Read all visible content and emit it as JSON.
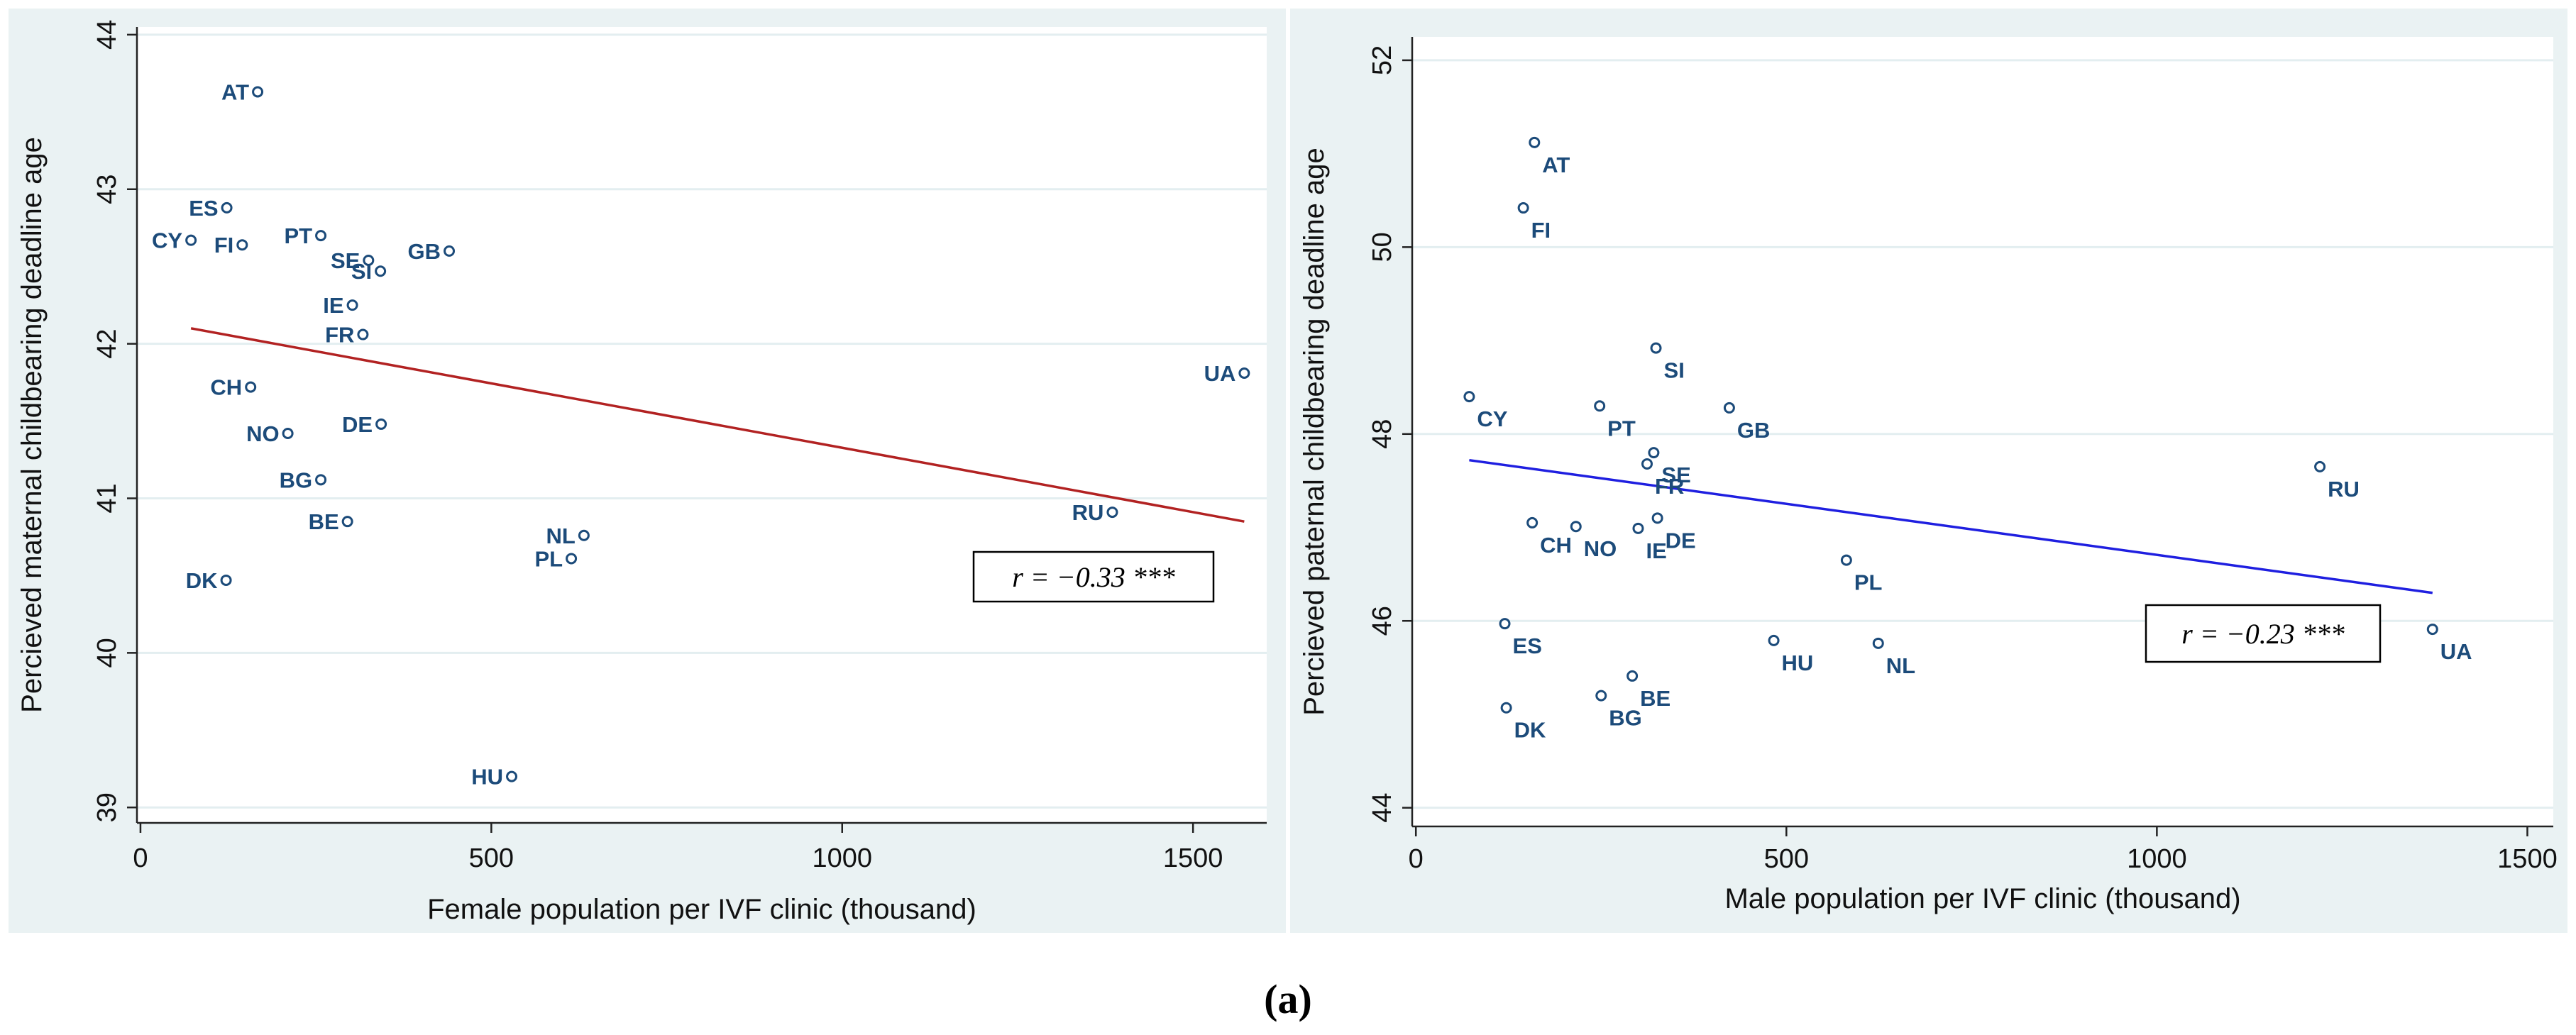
{
  "caption": "(a)",
  "chart_data": [
    {
      "type": "scatter",
      "title": "",
      "xlabel": "Female population per IVF clinic (thousand)",
      "ylabel": "Percieved maternal childbearing deadline age",
      "xlim": [
        -5,
        1605
      ],
      "ylim": [
        38.9,
        44.05
      ],
      "xticks": [
        0,
        500,
        1000,
        1500
      ],
      "xtick_labels": [
        "0",
        "500",
        "1000",
        "1500"
      ],
      "yticks": [
        39,
        40,
        41,
        42,
        43,
        44
      ],
      "ytick_labels": [
        "39",
        "40",
        "41",
        "42",
        "43",
        "44"
      ],
      "grid": true,
      "points": [
        {
          "label": "AT",
          "x": 167,
          "y": 43.63,
          "pos": "left"
        },
        {
          "label": "ES",
          "x": 123,
          "y": 42.88,
          "pos": "left"
        },
        {
          "label": "CY",
          "x": 72,
          "y": 42.67,
          "pos": "left"
        },
        {
          "label": "FI",
          "x": 145,
          "y": 42.64,
          "pos": "left"
        },
        {
          "label": "PT",
          "x": 257,
          "y": 42.7,
          "pos": "left"
        },
        {
          "label": "SE",
          "x": 325,
          "y": 42.54,
          "pos": "left"
        },
        {
          "label": "SI",
          "x": 342,
          "y": 42.47,
          "pos": "left"
        },
        {
          "label": "GB",
          "x": 440,
          "y": 42.6,
          "pos": "left"
        },
        {
          "label": "IE",
          "x": 302,
          "y": 42.25,
          "pos": "left"
        },
        {
          "label": "FR",
          "x": 317,
          "y": 42.06,
          "pos": "left"
        },
        {
          "label": "UA",
          "x": 1573,
          "y": 41.81,
          "pos": "left"
        },
        {
          "label": "CH",
          "x": 157,
          "y": 41.72,
          "pos": "left"
        },
        {
          "label": "DE",
          "x": 343,
          "y": 41.48,
          "pos": "left"
        },
        {
          "label": "NO",
          "x": 210,
          "y": 41.42,
          "pos": "left"
        },
        {
          "label": "BG",
          "x": 257,
          "y": 41.12,
          "pos": "left"
        },
        {
          "label": "RU",
          "x": 1385,
          "y": 40.91,
          "pos": "left"
        },
        {
          "label": "BE",
          "x": 295,
          "y": 40.85,
          "pos": "left"
        },
        {
          "label": "NL",
          "x": 632,
          "y": 40.76,
          "pos": "left"
        },
        {
          "label": "PL",
          "x": 614,
          "y": 40.61,
          "pos": "left"
        },
        {
          "label": "DK",
          "x": 122,
          "y": 40.47,
          "pos": "left"
        },
        {
          "label": "HU",
          "x": 529,
          "y": 39.2,
          "pos": "left"
        }
      ],
      "fit_line": {
        "x": [
          72,
          1573
        ],
        "y": [
          42.1,
          40.85
        ],
        "color": "#b22222"
      },
      "annotation": "r = −0.33 ***"
    },
    {
      "type": "scatter",
      "title": "",
      "xlabel": "Male population per IVF clinic (thousand)",
      "ylabel": "Percieved paternal childbearing deadline age",
      "xlim": [
        -5,
        1535
      ],
      "ylim": [
        43.8,
        52.25
      ],
      "xticks": [
        0,
        500,
        1000,
        1500
      ],
      "xtick_labels": [
        "0",
        "500",
        "1000",
        "1500"
      ],
      "yticks": [
        44,
        46,
        48,
        50,
        52
      ],
      "ytick_labels": [
        "44",
        "46",
        "48",
        "50",
        "52"
      ],
      "grid": true,
      "points": [
        {
          "label": "AT",
          "x": 160,
          "y": 51.12,
          "pos": "below"
        },
        {
          "label": "FI",
          "x": 145,
          "y": 50.42,
          "pos": "below"
        },
        {
          "label": "SI",
          "x": 324,
          "y": 48.92,
          "pos": "below"
        },
        {
          "label": "CY",
          "x": 72,
          "y": 48.4,
          "pos": "below"
        },
        {
          "label": "PT",
          "x": 248,
          "y": 48.3,
          "pos": "below"
        },
        {
          "label": "GB",
          "x": 423,
          "y": 48.28,
          "pos": "below"
        },
        {
          "label": "SE",
          "x": 321,
          "y": 47.8,
          "pos": "below"
        },
        {
          "label": "FR",
          "x": 312,
          "y": 47.68,
          "pos": "below"
        },
        {
          "label": "RU",
          "x": 1220,
          "y": 47.65,
          "pos": "below"
        },
        {
          "label": "DE",
          "x": 326,
          "y": 47.1,
          "pos": "below"
        },
        {
          "label": "CH",
          "x": 157,
          "y": 47.05,
          "pos": "below"
        },
        {
          "label": "NO",
          "x": 216,
          "y": 47.01,
          "pos": "below"
        },
        {
          "label": "IE",
          "x": 300,
          "y": 46.99,
          "pos": "below"
        },
        {
          "label": "PL",
          "x": 581,
          "y": 46.65,
          "pos": "below"
        },
        {
          "label": "ES",
          "x": 120,
          "y": 45.97,
          "pos": "below"
        },
        {
          "label": "UA",
          "x": 1372,
          "y": 45.91,
          "pos": "below"
        },
        {
          "label": "HU",
          "x": 483,
          "y": 45.79,
          "pos": "below"
        },
        {
          "label": "NL",
          "x": 624,
          "y": 45.76,
          "pos": "below"
        },
        {
          "label": "BE",
          "x": 292,
          "y": 45.41,
          "pos": "below"
        },
        {
          "label": "BG",
          "x": 250,
          "y": 45.2,
          "pos": "below"
        },
        {
          "label": "DK",
          "x": 122,
          "y": 45.07,
          "pos": "below"
        }
      ],
      "fit_line": {
        "x": [
          72,
          1372
        ],
        "y": [
          47.72,
          46.3
        ],
        "color": "#1f1fe0"
      },
      "annotation": "r = −0.23 ***"
    }
  ]
}
